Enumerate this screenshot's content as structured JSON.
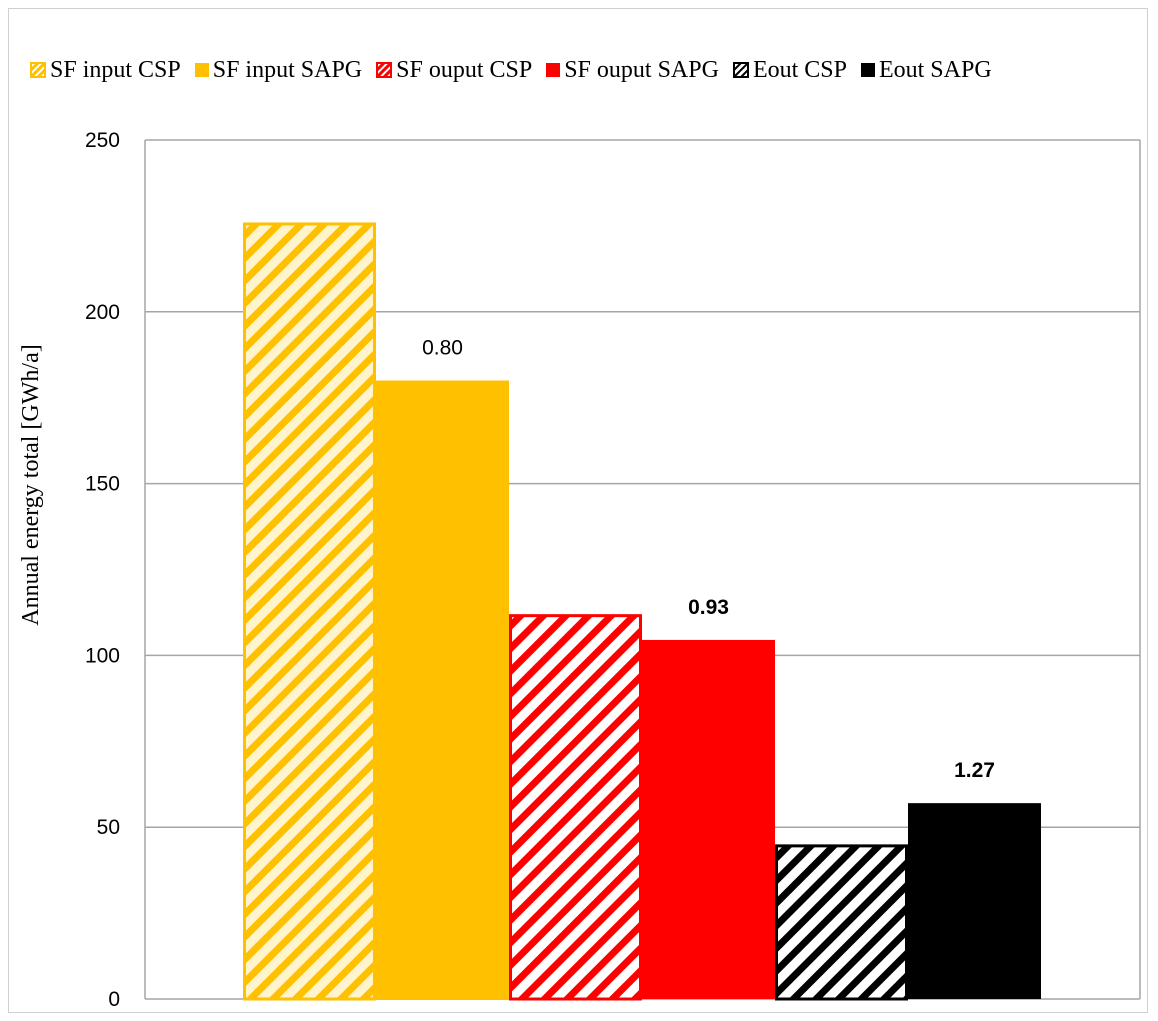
{
  "chart_data": {
    "type": "bar",
    "ylabel": "Annual energy total  [GWh/a]",
    "xlabel": "",
    "ylim": [
      0,
      250
    ],
    "yticks": [
      0,
      50,
      100,
      150,
      200,
      250
    ],
    "grid": true,
    "legend_position": "top",
    "series": [
      {
        "name": "SF input CSP",
        "value": 226,
        "color": "#FFC000",
        "pattern": "hatched",
        "label": ""
      },
      {
        "name": "SF input SAPG",
        "value": 180,
        "color": "#FFC000",
        "pattern": "solid",
        "label": "0.80",
        "label_bold": false
      },
      {
        "name": "SF ouput CSP",
        "value": 112,
        "color": "#FF0000",
        "pattern": "hatched",
        "label": ""
      },
      {
        "name": "SF ouput SAPG",
        "value": 104.5,
        "color": "#FF0000",
        "pattern": "solid",
        "label": "0.93",
        "label_bold": true
      },
      {
        "name": "Eout CSP",
        "value": 45,
        "color": "#000000",
        "pattern": "hatched",
        "label": ""
      },
      {
        "name": "Eout SAPG",
        "value": 57,
        "color": "#000000",
        "pattern": "solid",
        "label": "1.27",
        "label_bold": true
      }
    ]
  }
}
